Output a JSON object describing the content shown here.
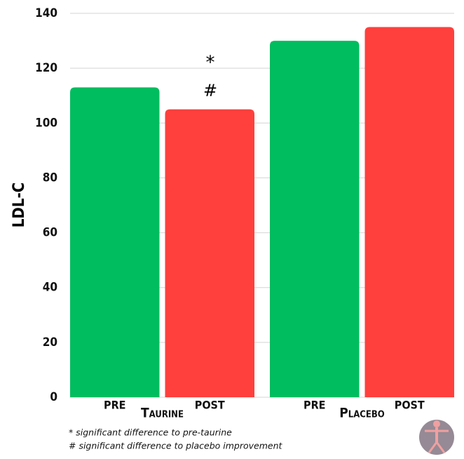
{
  "chart_data": {
    "type": "bar",
    "y_label": "LDL-C",
    "categories": [
      "Taurine",
      "Placebo"
    ],
    "series": [
      {
        "name": "PRE",
        "color": "#00bd5f",
        "values": [
          113,
          130
        ]
      },
      {
        "name": "POST",
        "color": "#ff403d",
        "values": [
          105,
          135
        ]
      }
    ],
    "ylim": [
      0,
      140
    ],
    "yticks": [
      0,
      20,
      40,
      60,
      80,
      100,
      120,
      140
    ],
    "grid": true,
    "annotations": [
      "*",
      "#"
    ],
    "footnotes": [
      "* significant difference to pre-taurine",
      "# significant difference to placebo improvement"
    ]
  }
}
